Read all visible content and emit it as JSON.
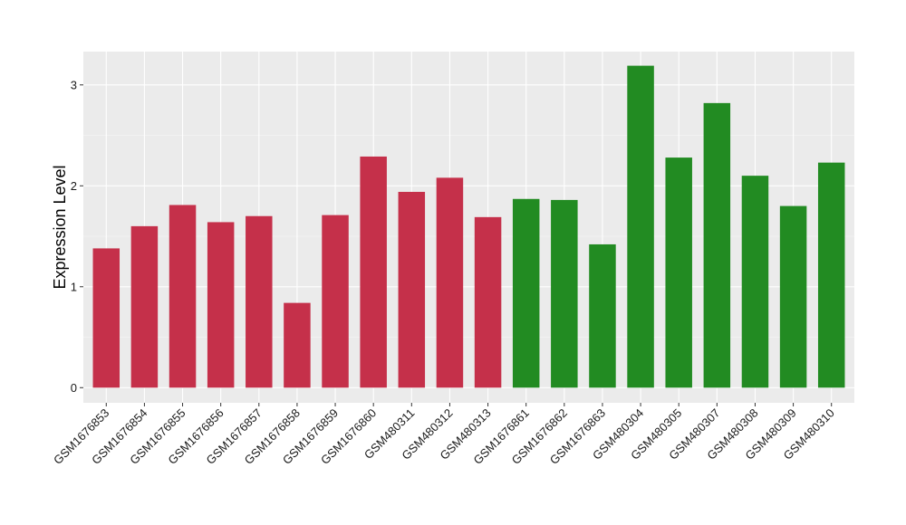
{
  "chart_data": {
    "type": "bar",
    "title": "",
    "xlabel": "",
    "ylabel": "Expression Level",
    "ylim": [
      -0.15,
      3.33
    ],
    "yticks": [
      0,
      1,
      2,
      3
    ],
    "grid": true,
    "panel_background": "#ebebeb",
    "categories": [
      "GSM1676853",
      "GSM1676854",
      "GSM1676855",
      "GSM1676856",
      "GSM1676857",
      "GSM1676858",
      "GSM1676859",
      "GSM1676860",
      "GSM480311",
      "GSM480312",
      "GSM480313",
      "GSM1676861",
      "GSM1676862",
      "GSM1676863",
      "GSM480304",
      "GSM480305",
      "GSM480307",
      "GSM480308",
      "GSM480309",
      "GSM480310"
    ],
    "values": [
      1.38,
      1.6,
      1.81,
      1.64,
      1.7,
      0.84,
      1.71,
      2.29,
      1.94,
      2.08,
      1.69,
      1.87,
      1.86,
      1.42,
      3.19,
      2.28,
      2.82,
      2.1,
      1.8,
      2.23
    ],
    "groups": [
      "a",
      "a",
      "a",
      "a",
      "a",
      "a",
      "a",
      "a",
      "a",
      "a",
      "a",
      "b",
      "b",
      "b",
      "b",
      "b",
      "b",
      "b",
      "b",
      "b"
    ],
    "colors": {
      "a": "#c5304a",
      "b": "#228b22"
    }
  }
}
